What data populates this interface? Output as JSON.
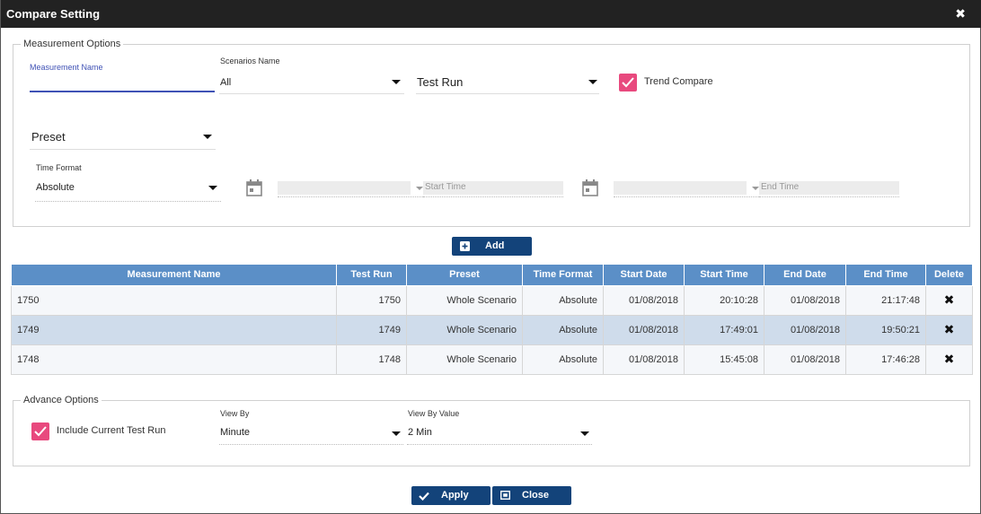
{
  "dialog": {
    "title": "Compare Setting",
    "close_glyph": "✖"
  },
  "measurement_options": {
    "legend": "Measurement Options",
    "measurement_name_label": "Measurement Name",
    "measurement_name_value": "",
    "scenarios_label": "Scenarios Name",
    "scenarios_value": "All",
    "test_run_value": "Test Run",
    "trend_compare_label": "Trend Compare",
    "trend_compare_checked": true,
    "preset_value": "Preset",
    "time_format_label": "Time Format",
    "time_format_value": "Absolute",
    "start_time_placeholder": "Start Time",
    "end_time_placeholder": "End Time"
  },
  "add_button": {
    "label": "Add",
    "icon": "plus-square-icon"
  },
  "table": {
    "columns": [
      "Measurement Name",
      "Test Run",
      "Preset",
      "Time Format",
      "Start Date",
      "Start Time",
      "End Date",
      "End Time",
      "Delete"
    ],
    "rows": [
      {
        "measurement_name": "1750",
        "test_run": "1750",
        "preset": "Whole Scenario",
        "time_format": "Absolute",
        "start_date": "01/08/2018",
        "start_time": "20:10:28",
        "end_date": "01/08/2018",
        "end_time": "21:17:48",
        "delete_glyph": "✖"
      },
      {
        "measurement_name": "1749",
        "test_run": "1749",
        "preset": "Whole Scenario",
        "time_format": "Absolute",
        "start_date": "01/08/2018",
        "start_time": "17:49:01",
        "end_date": "01/08/2018",
        "end_time": "19:50:21",
        "delete_glyph": "✖"
      },
      {
        "measurement_name": "1748",
        "test_run": "1748",
        "preset": "Whole Scenario",
        "time_format": "Absolute",
        "start_date": "01/08/2018",
        "start_time": "15:45:08",
        "end_date": "01/08/2018",
        "end_time": "17:46:28",
        "delete_glyph": "✖"
      }
    ]
  },
  "advance_options": {
    "legend": "Advance Options",
    "include_current_label": "Include Current Test Run",
    "include_current_checked": true,
    "view_by_label": "View By",
    "view_by_value": "Minute",
    "view_by_value_label": "View By Value",
    "view_by_value_value": "2 Min"
  },
  "footer": {
    "apply_label": "Apply",
    "close_label": "Close"
  },
  "colors": {
    "titlebar": "#222222",
    "primary_button": "#13437a",
    "table_header": "#5b8fc7",
    "selected_row": "#cfdceb",
    "checkbox": "#e8497e"
  }
}
